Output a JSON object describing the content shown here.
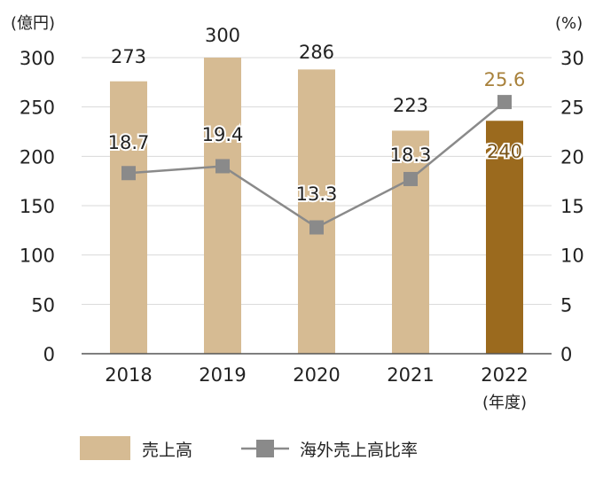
{
  "chart_data": {
    "type": "bar",
    "categories": [
      "2018",
      "2019",
      "2020",
      "2021",
      "2022"
    ],
    "x_unit_label": "(年度)",
    "y_left": {
      "unit_label": "(億円)",
      "ylim": [
        0,
        300
      ],
      "ticks": [
        0,
        50,
        100,
        150,
        200,
        250,
        300
      ]
    },
    "y_right": {
      "unit_label": "(%)",
      "ylim": [
        0,
        30
      ],
      "ticks": [
        0,
        5,
        10,
        15,
        20,
        25,
        30
      ]
    },
    "grid": true,
    "legend_position": "bottom",
    "series": [
      {
        "name": "売上高",
        "type": "bar",
        "axis": "left",
        "values": [
          273,
          300,
          286,
          223,
          240
        ],
        "bar_heights": [
          276,
          300,
          288,
          226,
          236
        ],
        "color": "#d6bb93",
        "highlight_color": "#9b6a1e",
        "highlight_index": 4
      },
      {
        "name": "海外売上高比率",
        "type": "line",
        "axis": "right",
        "values": [
          18.7,
          19.4,
          13.3,
          18.3,
          25.6
        ],
        "plotted_values": [
          18.3,
          19.0,
          12.8,
          17.7,
          25.5
        ],
        "color": "#8a8a8a",
        "highlight_label_color": "#a8813b"
      }
    ],
    "axis_color": "#555555",
    "grid_color": "#d9d9d9",
    "text_color": "#222222"
  }
}
